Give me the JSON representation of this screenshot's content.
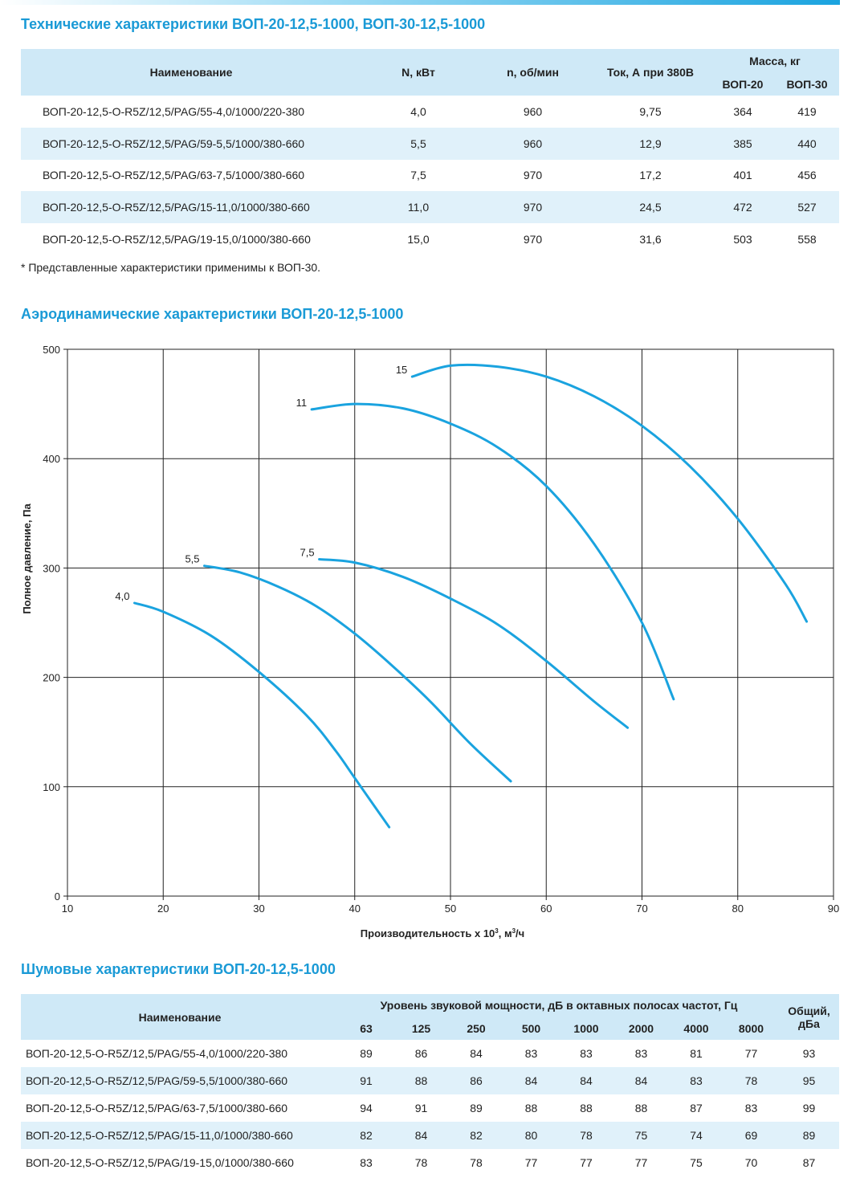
{
  "spec": {
    "title": "Технические характеристики ВОП-20-12,5-1000, ВОП-30-12,5-1000",
    "headers": {
      "name": "Наименование",
      "power": "N, кВт",
      "speed": "n, об/мин",
      "current": "Ток, А при 380В",
      "mass": "Масса, кг",
      "mass_20": "ВОП-20",
      "mass_30": "ВОП-30"
    },
    "rows": [
      {
        "name": "ВОП-20-12,5-O-R5Z/12,5/PAG/55-4,0/1000/220-380",
        "power": "4,0",
        "speed": "960",
        "current": "9,75",
        "m20": "364",
        "m30": "419"
      },
      {
        "name": "ВОП-20-12,5-O-R5Z/12,5/PAG/59-5,5/1000/380-660",
        "power": "5,5",
        "speed": "960",
        "current": "12,9",
        "m20": "385",
        "m30": "440"
      },
      {
        "name": "ВОП-20-12,5-O-R5Z/12,5/PAG/63-7,5/1000/380-660",
        "power": "7,5",
        "speed": "970",
        "current": "17,2",
        "m20": "401",
        "m30": "456"
      },
      {
        "name": "ВОП-20-12,5-O-R5Z/12,5/PAG/15-11,0/1000/380-660",
        "power": "11,0",
        "speed": "970",
        "current": "24,5",
        "m20": "472",
        "m30": "527"
      },
      {
        "name": "ВОП-20-12,5-O-R5Z/12,5/PAG/19-15,0/1000/380-660",
        "power": "15,0",
        "speed": "970",
        "current": "31,6",
        "m20": "503",
        "m30": "558"
      }
    ],
    "footnote": "* Представленные характеристики применимы к ВОП-30."
  },
  "aero": {
    "title": "Аэродинамические характеристики ВОП-20-12,5-1000"
  },
  "chart_data": {
    "type": "line",
    "xlabel_main": "Производительность х 10",
    "xlabel_sup": "3",
    "xlabel_unit": ", м",
    "xlabel_unit_sup": "3",
    "xlabel_tail": "/ч",
    "ylabel": "Полное давление, Па",
    "xlim": [
      10,
      90
    ],
    "ylim": [
      0,
      500
    ],
    "x_ticks": [
      10,
      20,
      30,
      40,
      50,
      60,
      70,
      80,
      90
    ],
    "y_ticks": [
      0,
      100,
      200,
      300,
      400,
      500
    ],
    "grid": true,
    "line_color": "#1aa3df",
    "series": [
      {
        "name": "4,0",
        "x": [
          17,
          20,
          25,
          30,
          35,
          38,
          40,
          42,
          43.6
        ],
        "y": [
          268,
          260,
          238,
          205,
          165,
          133,
          108,
          83,
          63
        ]
      },
      {
        "name": "5,5",
        "x": [
          24.3,
          28,
          32,
          36,
          40,
          44,
          48,
          52,
          56.3
        ],
        "y": [
          302,
          296,
          283,
          265,
          240,
          210,
          177,
          140,
          105
        ]
      },
      {
        "name": "7,5",
        "x": [
          36.3,
          40,
          45,
          50,
          55,
          60,
          65,
          68.5
        ],
        "y": [
          308,
          305,
          292,
          272,
          248,
          215,
          178,
          154
        ]
      },
      {
        "name": "11",
        "x": [
          35.5,
          40,
          45,
          50,
          55,
          60,
          65,
          70,
          73.3
        ],
        "y": [
          445,
          450,
          446,
          432,
          410,
          375,
          322,
          250,
          180
        ]
      },
      {
        "name": "15",
        "x": [
          46,
          50,
          55,
          60,
          65,
          70,
          75,
          80,
          85,
          87.2
        ],
        "y": [
          475,
          485,
          484,
          475,
          457,
          430,
          393,
          345,
          285,
          251
        ]
      }
    ]
  },
  "noise": {
    "title": "Шумовые характеристики ВОП-20-12,5-1000",
    "headers": {
      "name": "Наименование",
      "band": "Уровень звуковой мощности, дБ в октавных полосах частот, Гц",
      "total": "Общий, дБа"
    },
    "bands": [
      "63",
      "125",
      "250",
      "500",
      "1000",
      "2000",
      "4000",
      "8000"
    ],
    "rows": [
      {
        "name": "ВОП-20-12,5-O-R5Z/12,5/PAG/55-4,0/1000/220-380",
        "v": [
          "89",
          "86",
          "84",
          "83",
          "83",
          "83",
          "81",
          "77"
        ],
        "total": "93"
      },
      {
        "name": "ВОП-20-12,5-O-R5Z/12,5/PAG/59-5,5/1000/380-660",
        "v": [
          "91",
          "88",
          "86",
          "84",
          "84",
          "84",
          "83",
          "78"
        ],
        "total": "95"
      },
      {
        "name": "ВОП-20-12,5-O-R5Z/12,5/PAG/63-7,5/1000/380-660",
        "v": [
          "94",
          "91",
          "89",
          "88",
          "88",
          "88",
          "87",
          "83"
        ],
        "total": "99"
      },
      {
        "name": "ВОП-20-12,5-O-R5Z/12,5/PAG/15-11,0/1000/380-660",
        "v": [
          "82",
          "84",
          "82",
          "80",
          "78",
          "75",
          "74",
          "69"
        ],
        "total": "89"
      },
      {
        "name": "ВОП-20-12,5-O-R5Z/12,5/PAG/19-15,0/1000/380-660",
        "v": [
          "83",
          "78",
          "78",
          "77",
          "77",
          "77",
          "75",
          "70"
        ],
        "total": "87"
      }
    ]
  }
}
